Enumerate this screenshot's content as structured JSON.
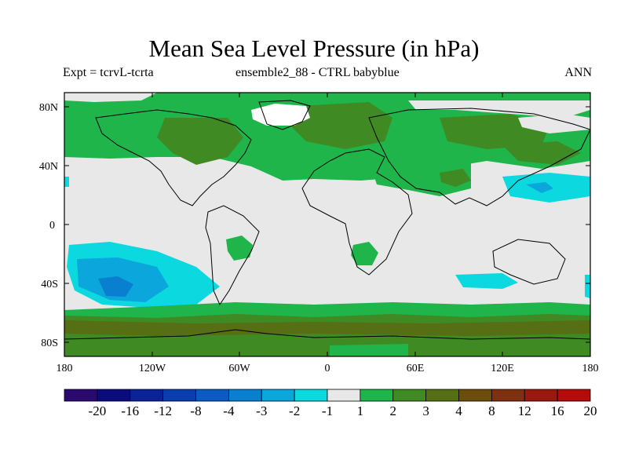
{
  "title": "Mean Sea Level Pressure (in hPa)",
  "subtitle_left": "Expt = tcrvL-tcrta",
  "subtitle_center": "ensemble2_88 - CTRL babyblue",
  "subtitle_right": "ANN",
  "lat_ticks": [
    "80N",
    "40N",
    "0",
    "40S",
    "80S"
  ],
  "lon_ticks": [
    "180",
    "120W",
    "60W",
    "0",
    "60E",
    "120E",
    "180"
  ],
  "colorbar": {
    "colors": [
      "#2a0a6e",
      "#0b0b7e",
      "#0a2396",
      "#0b3ead",
      "#0b5cc2",
      "#0b7fcf",
      "#0ba6dc",
      "#0bd8df",
      "#e8e8e8",
      "#1fb54a",
      "#3f8a23",
      "#566e14",
      "#6b4d0c",
      "#7e3010",
      "#981a0f",
      "#b50b0b"
    ],
    "labels": [
      "-20",
      "-16",
      "-12",
      "-8",
      "-4",
      "-3",
      "-2",
      "-1",
      "1",
      "2",
      "3",
      "4",
      "8",
      "12",
      "16",
      "20"
    ]
  },
  "palette": {
    "neutral": "#e8e8e8",
    "green": "#1fb54a",
    "olive": "#3f8a23",
    "brown": "#566e14",
    "cyan": "#0bd8df",
    "lightblue": "#0ba6dc",
    "blue": "#0b7fcf",
    "white": "#ffffff"
  }
}
